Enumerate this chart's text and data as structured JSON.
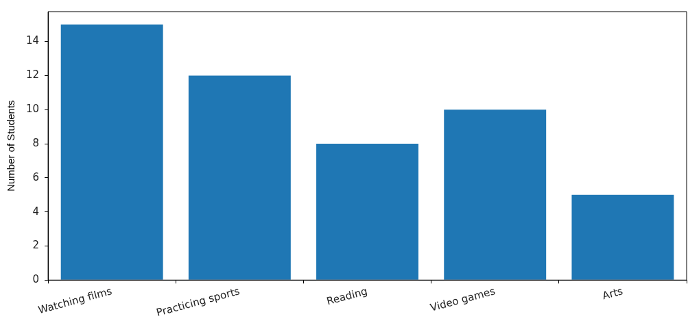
{
  "chart_data": {
    "type": "bar",
    "ylabel": "Number of Students",
    "categories": [
      "Watching films",
      "Practicing sports",
      "Reading",
      "Video games",
      "Arts"
    ],
    "values": [
      15,
      12,
      8,
      10,
      5
    ],
    "color": "#1f77b4",
    "ylim": [
      0,
      15.75
    ],
    "yticks": [
      0,
      2,
      4,
      6,
      8,
      10,
      12,
      14
    ],
    "grid": false,
    "legend": false
  }
}
